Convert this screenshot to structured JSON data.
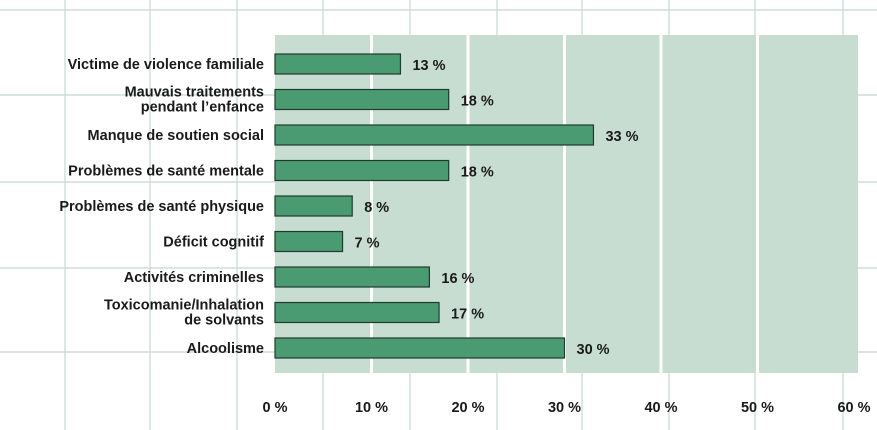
{
  "chart_data": {
    "type": "bar",
    "orientation": "horizontal",
    "categories": [
      "Victime de violence familiale",
      "Mauvais traitements pendant l’enfance",
      "Manque de soutien social",
      "Problèmes de santé mentale",
      "Problèmes de santé physique",
      "Déficit cognitif",
      "Activités criminelles",
      "Toxicomanie/Inhalation de solvants",
      "Alcoolisme"
    ],
    "category_lines": [
      [
        "Victime de violence familiale"
      ],
      [
        "Mauvais traitements",
        "pendant l’enfance"
      ],
      [
        "Manque de soutien social"
      ],
      [
        "Problèmes de santé mentale"
      ],
      [
        "Problèmes de santé physique"
      ],
      [
        "Déficit cognitif"
      ],
      [
        "Activités criminelles"
      ],
      [
        "Toxicomanie/Inhalation",
        "de solvants"
      ],
      [
        "Alcoolisme"
      ]
    ],
    "values": [
      13,
      18,
      33,
      18,
      8,
      7,
      16,
      17,
      30
    ],
    "value_labels": [
      "13 %",
      "18 %",
      "33 %",
      "18 %",
      "8 %",
      "7 %",
      "16 %",
      "17 %",
      "30 %"
    ],
    "xlim": [
      0,
      60
    ],
    "xticks": [
      0,
      10,
      20,
      30,
      40,
      50,
      60
    ],
    "xtick_labels": [
      "0 %",
      "10 %",
      "20 %",
      "30 %",
      "40 %",
      "50 %",
      "60 %"
    ],
    "title": "",
    "xlabel": "",
    "ylabel": "",
    "grid": true,
    "colors": {
      "bar": "#4a9a72",
      "bar_border": "#1e3b2c",
      "plot_bg": "#c8ddd2",
      "gridline": "#ffffff",
      "outer_grid": "#c8d8cf"
    }
  }
}
